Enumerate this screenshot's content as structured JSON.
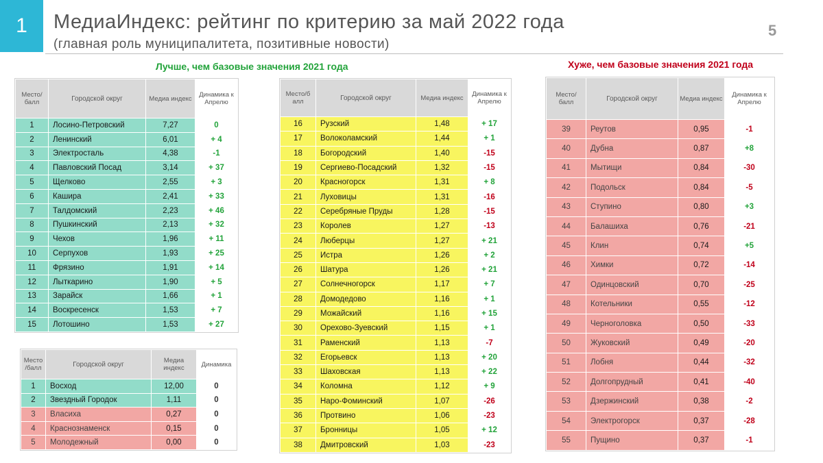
{
  "header": {
    "badge": "1",
    "title": "МедиаИндекс: рейтинг по критерию за май 2022 года",
    "subtitle": "(главная роль муниципалитета, позитивные новости)",
    "page_number": "5"
  },
  "captions": {
    "better": "Лучше, чем базовые значения 2021 года",
    "worse": "Хуже, чем базовые значения 2021 года"
  },
  "colors": {
    "teal": "#92dcc9",
    "yellow": "#f8f55f",
    "pink": "#f2a7a4",
    "green": "#22a33a",
    "red": "#c0001a",
    "badge": "#2db7d6"
  },
  "table1": {
    "headers": [
      "Место/ балл",
      "Городской округ",
      "Медиа индекс",
      "Динамика к Апрелю"
    ],
    "rows": [
      {
        "place": "1",
        "district": "Лосино-Петровский",
        "index": "7,27",
        "dyn": "0",
        "sign": "pos"
      },
      {
        "place": "2",
        "district": "Ленинский",
        "index": "6,01",
        "dyn": "+ 4",
        "sign": "pos"
      },
      {
        "place": "3",
        "district": "Электросталь",
        "index": "4,38",
        "dyn": "-1",
        "sign": "pos"
      },
      {
        "place": "4",
        "district": "Павловский Посад",
        "index": "3,14",
        "dyn": "+ 37",
        "sign": "pos"
      },
      {
        "place": "5",
        "district": "Щелково",
        "index": "2,55",
        "dyn": "+ 3",
        "sign": "pos"
      },
      {
        "place": "6",
        "district": "Кашира",
        "index": "2,41",
        "dyn": "+ 33",
        "sign": "pos"
      },
      {
        "place": "7",
        "district": "Талдомский",
        "index": "2,23",
        "dyn": "+ 46",
        "sign": "pos"
      },
      {
        "place": "8",
        "district": "Пушкинский",
        "index": "2,13",
        "dyn": "+ 32",
        "sign": "pos"
      },
      {
        "place": "9",
        "district": "Чехов",
        "index": "1,96",
        "dyn": "+ 11",
        "sign": "pos"
      },
      {
        "place": "10",
        "district": "Серпухов",
        "index": "1,93",
        "dyn": "+ 25",
        "sign": "pos"
      },
      {
        "place": "11",
        "district": "Фрязино",
        "index": "1,91",
        "dyn": "+ 14",
        "sign": "pos"
      },
      {
        "place": "12",
        "district": "Лыткарино",
        "index": "1,90",
        "dyn": "+ 5",
        "sign": "pos"
      },
      {
        "place": "13",
        "district": "Зарайск",
        "index": "1,66",
        "dyn": "+ 1",
        "sign": "pos"
      },
      {
        "place": "14",
        "district": "Воскресенск",
        "index": "1,53",
        "dyn": "+ 7",
        "sign": "pos"
      },
      {
        "place": "15",
        "district": "Лотошино",
        "index": "1,53",
        "dyn": "+ 27",
        "sign": "pos"
      }
    ]
  },
  "table2": {
    "headers": [
      "Место /балл",
      "Городской округ",
      "Медиа индекс",
      "Динамика"
    ],
    "rows": [
      {
        "place": "1",
        "district": "Восход",
        "index": "12,00",
        "dyn": "0",
        "color": "teal"
      },
      {
        "place": "2",
        "district": "Звездный Городок",
        "index": "1,11",
        "dyn": "0",
        "color": "teal"
      },
      {
        "place": "3",
        "district": "Власиха",
        "index": "0,27",
        "dyn": "0",
        "color": "pink"
      },
      {
        "place": "4",
        "district": "Краснознаменск",
        "index": "0,15",
        "dyn": "0",
        "color": "pink"
      },
      {
        "place": "5",
        "district": "Молодежный",
        "index": "0,00",
        "dyn": "0",
        "color": "pink"
      }
    ]
  },
  "table3": {
    "headers": [
      "Место/б алл",
      "Городской округ",
      "Медиа индекс",
      "Динамика к Апрелю"
    ],
    "rows": [
      {
        "place": "16",
        "district": "Рузский",
        "index": "1,48",
        "dyn": "+ 17",
        "sign": "pos"
      },
      {
        "place": "17",
        "district": "Волоколамский",
        "index": "1,44",
        "dyn": "+ 1",
        "sign": "pos"
      },
      {
        "place": "18",
        "district": "Богородский",
        "index": "1,40",
        "dyn": "-15",
        "sign": "neg"
      },
      {
        "place": "19",
        "district": "Сергиево-Посадский",
        "index": "1,32",
        "dyn": "-15",
        "sign": "neg"
      },
      {
        "place": "20",
        "district": "Красногорск",
        "index": "1,31",
        "dyn": "+ 8",
        "sign": "pos"
      },
      {
        "place": "21",
        "district": "Луховицы",
        "index": "1,31",
        "dyn": "-16",
        "sign": "neg"
      },
      {
        "place": "22",
        "district": "Серебряные Пруды",
        "index": "1,28",
        "dyn": "-15",
        "sign": "neg"
      },
      {
        "place": "23",
        "district": "Королев",
        "index": "1,27",
        "dyn": "-13",
        "sign": "neg"
      },
      {
        "place": "24",
        "district": "Люберцы",
        "index": "1,27",
        "dyn": "+ 21",
        "sign": "pos"
      },
      {
        "place": "25",
        "district": "Истра",
        "index": "1,26",
        "dyn": "+ 2",
        "sign": "pos"
      },
      {
        "place": "26",
        "district": "Шатура",
        "index": "1,26",
        "dyn": "+ 21",
        "sign": "pos"
      },
      {
        "place": "27",
        "district": "Солнечногорск",
        "index": "1,17",
        "dyn": "+ 7",
        "sign": "pos"
      },
      {
        "place": "28",
        "district": "Домодедово",
        "index": "1,16",
        "dyn": "+ 1",
        "sign": "pos"
      },
      {
        "place": "29",
        "district": "Можайский",
        "index": "1,16",
        "dyn": "+ 15",
        "sign": "pos"
      },
      {
        "place": "30",
        "district": "Орехово-Зуевский",
        "index": "1,15",
        "dyn": "+ 1",
        "sign": "pos"
      },
      {
        "place": "31",
        "district": "Раменский",
        "index": "1,13",
        "dyn": "-7",
        "sign": "neg"
      },
      {
        "place": "32",
        "district": "Егорьевск",
        "index": "1,13",
        "dyn": "+ 20",
        "sign": "pos"
      },
      {
        "place": "33",
        "district": "Шаховская",
        "index": "1,13",
        "dyn": "+ 22",
        "sign": "pos"
      },
      {
        "place": "34",
        "district": "Коломна",
        "index": "1,12",
        "dyn": "+ 9",
        "sign": "pos"
      },
      {
        "place": "35",
        "district": "Наро-Фоминский",
        "index": "1,07",
        "dyn": "-26",
        "sign": "neg"
      },
      {
        "place": "36",
        "district": "Протвино",
        "index": "1,06",
        "dyn": "-23",
        "sign": "neg"
      },
      {
        "place": "37",
        "district": "Бронницы",
        "index": "1,05",
        "dyn": "+ 12",
        "sign": "pos"
      },
      {
        "place": "38",
        "district": "Дмитровский",
        "index": "1,03",
        "dyn": "-23",
        "sign": "neg"
      }
    ]
  },
  "table4": {
    "headers": [
      "Место/ балл",
      "Городской округ",
      "Медиа индекс",
      "Динамика к Апрелю"
    ],
    "rows": [
      {
        "place": "39",
        "district": "Реутов",
        "index": "0,95",
        "dyn": "-1",
        "sign": "neg"
      },
      {
        "place": "40",
        "district": "Дубна",
        "index": "0,87",
        "dyn": "+8",
        "sign": "pos"
      },
      {
        "place": "41",
        "district": "Мытищи",
        "index": "0,84",
        "dyn": "-30",
        "sign": "neg"
      },
      {
        "place": "42",
        "district": "Подольск",
        "index": "0,84",
        "dyn": "-5",
        "sign": "neg"
      },
      {
        "place": "43",
        "district": "Ступино",
        "index": "0,80",
        "dyn": "+3",
        "sign": "pos"
      },
      {
        "place": "44",
        "district": "Балашиха",
        "index": "0,76",
        "dyn": "-21",
        "sign": "neg"
      },
      {
        "place": "45",
        "district": "Клин",
        "index": "0,74",
        "dyn": "+5",
        "sign": "pos"
      },
      {
        "place": "46",
        "district": "Химки",
        "index": "0,72",
        "dyn": "-14",
        "sign": "neg"
      },
      {
        "place": "47",
        "district": "Одинцовский",
        "index": "0,70",
        "dyn": "-25",
        "sign": "neg"
      },
      {
        "place": "48",
        "district": "Котельники",
        "index": "0,55",
        "dyn": "-12",
        "sign": "neg"
      },
      {
        "place": "49",
        "district": "Черноголовка",
        "index": "0,50",
        "dyn": "-33",
        "sign": "neg"
      },
      {
        "place": "50",
        "district": "Жуковский",
        "index": "0,49",
        "dyn": "-20",
        "sign": "neg"
      },
      {
        "place": "51",
        "district": "Лобня",
        "index": "0,44",
        "dyn": "-32",
        "sign": "neg"
      },
      {
        "place": "52",
        "district": "Долгопрудный",
        "index": "0,41",
        "dyn": "-40",
        "sign": "neg"
      },
      {
        "place": "53",
        "district": "Дзержинский",
        "index": "0,38",
        "dyn": "-2",
        "sign": "neg"
      },
      {
        "place": "54",
        "district": "Электрогорск",
        "index": "0,37",
        "dyn": "-28",
        "sign": "neg"
      },
      {
        "place": "55",
        "district": "Пущино",
        "index": "0,37",
        "dyn": "-1",
        "sign": "neg"
      }
    ]
  }
}
